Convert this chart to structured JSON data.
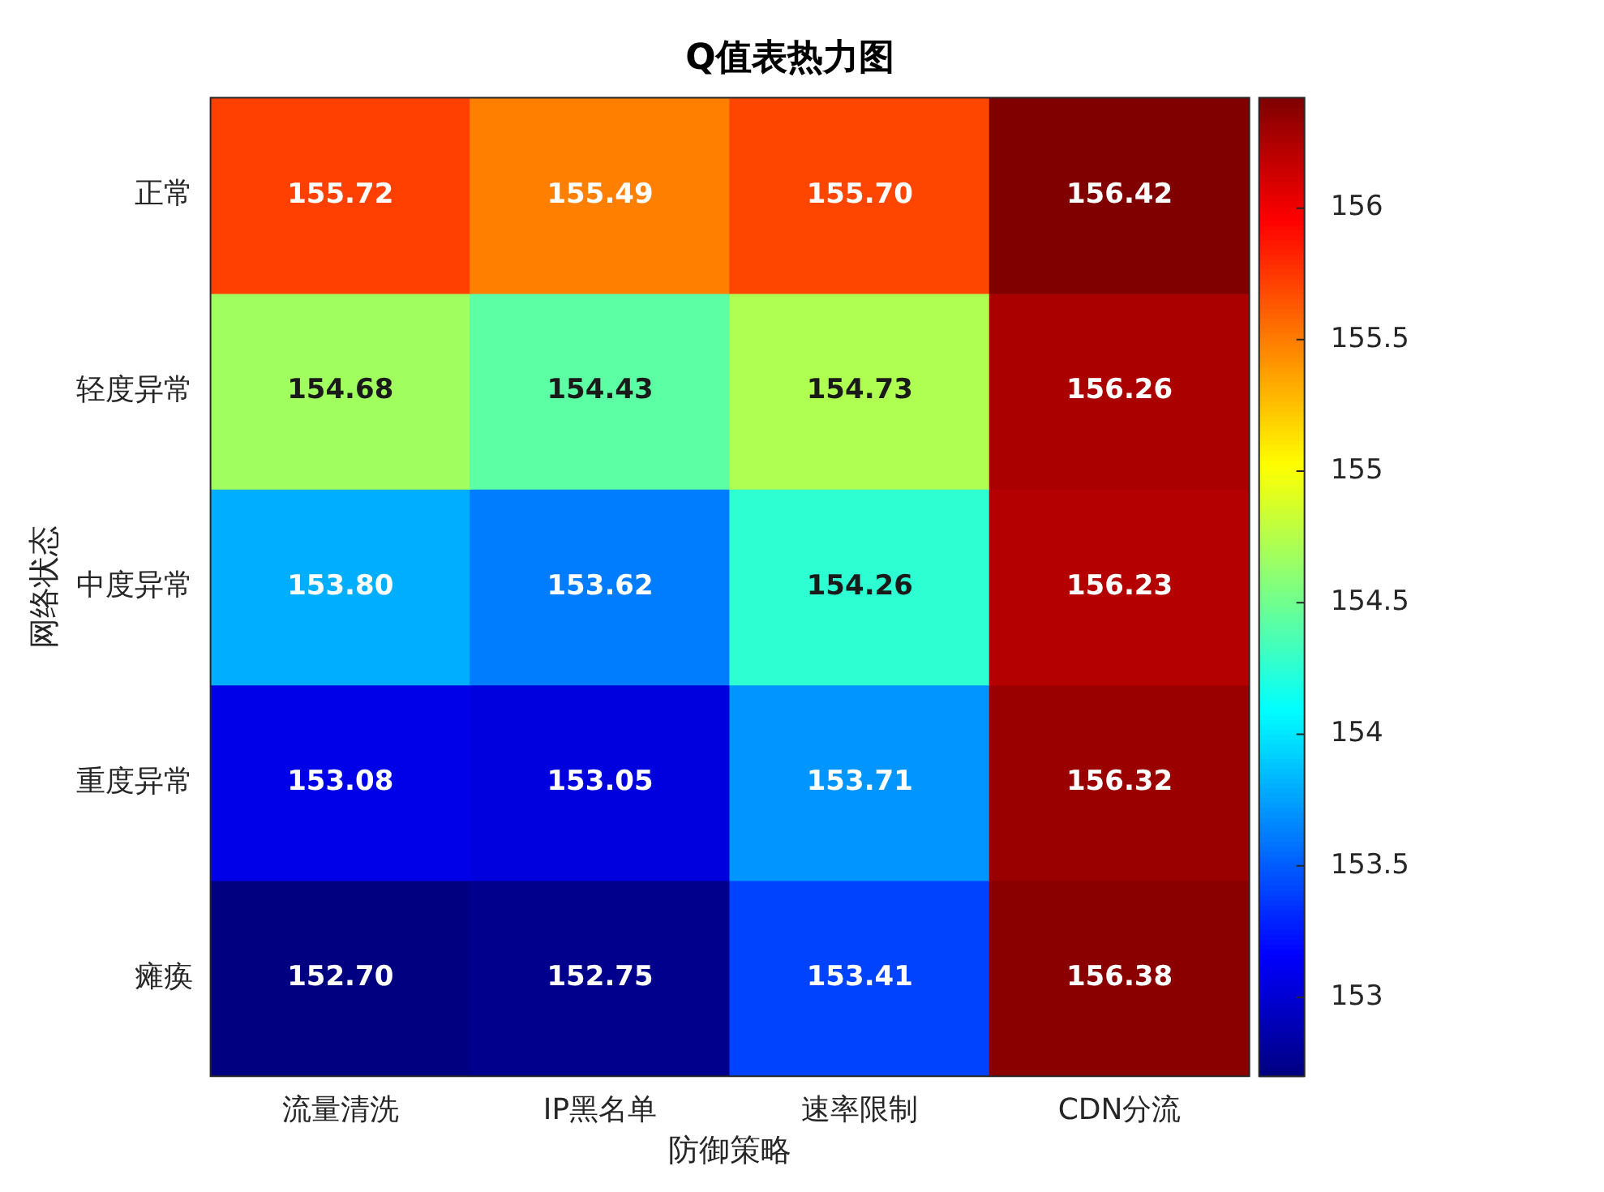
{
  "chart_data": {
    "type": "heatmap",
    "title": "Q值表热力图",
    "xlabel": "防御策略",
    "ylabel": "网络状态",
    "categories": [
      "流量清洗",
      "IP黑名单",
      "速率限制",
      "CDN分流"
    ],
    "y_categories": [
      "正常",
      "轻度异常",
      "中度异常",
      "重度异常",
      "瘫痪"
    ],
    "cells": [
      [
        155.72,
        155.49,
        155.7,
        156.42
      ],
      [
        154.68,
        154.43,
        154.73,
        156.26
      ],
      [
        153.8,
        153.62,
        154.26,
        156.23
      ],
      [
        153.08,
        153.05,
        153.71,
        156.32
      ],
      [
        152.7,
        152.75,
        153.41,
        156.38
      ]
    ],
    "cell_labels": [
      [
        "155.72",
        "155.49",
        "155.70",
        "156.42"
      ],
      [
        "154.68",
        "154.43",
        "154.73",
        "156.26"
      ],
      [
        "153.80",
        "153.62",
        "154.26",
        "156.23"
      ],
      [
        "153.08",
        "153.05",
        "153.71",
        "156.32"
      ],
      [
        "152.70",
        "152.75",
        "153.41",
        "156.38"
      ]
    ],
    "clim": [
      152.7,
      156.42
    ],
    "cticks": [
      153,
      153.5,
      154,
      154.5,
      155,
      155.5,
      156
    ]
  }
}
